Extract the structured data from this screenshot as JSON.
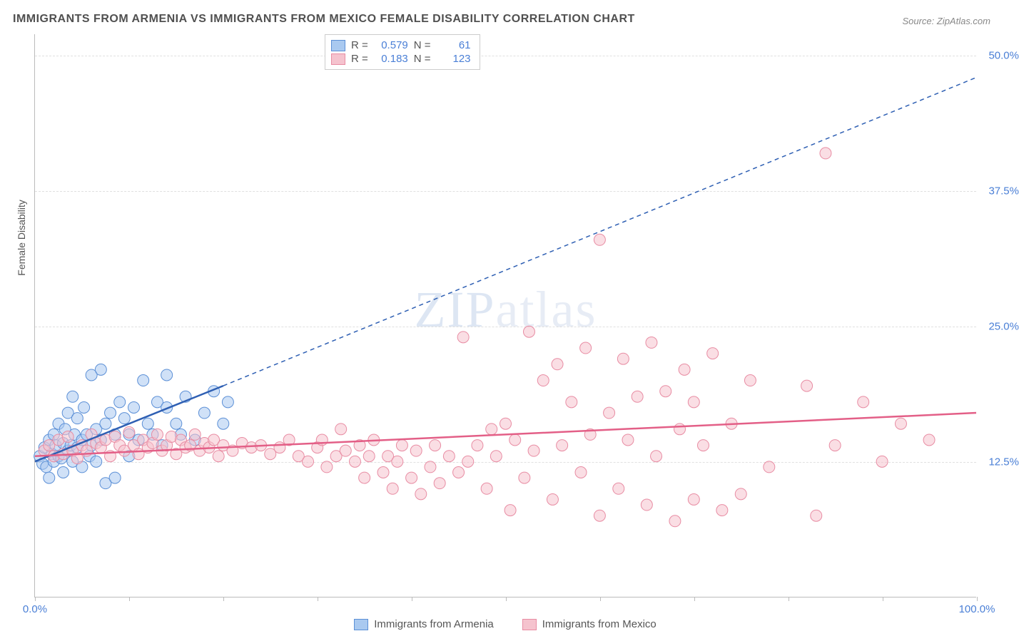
{
  "title": "IMMIGRANTS FROM ARMENIA VS IMMIGRANTS FROM MEXICO FEMALE DISABILITY CORRELATION CHART",
  "source_prefix": "Source: ",
  "source_name": "ZipAtlas.com",
  "ylabel": "Female Disability",
  "watermark_a": "ZIP",
  "watermark_b": "atlas",
  "chart": {
    "type": "scatter-with-regression",
    "xlim": [
      0,
      100
    ],
    "ylim": [
      0,
      52
    ],
    "x_ticks": [
      0,
      10,
      20,
      30,
      40,
      50,
      60,
      70,
      80,
      90,
      100
    ],
    "x_tick_labels": {
      "0": "0.0%",
      "100": "100.0%"
    },
    "y_gridlines": [
      12.5,
      25.0,
      37.5,
      50.0
    ],
    "y_tick_labels": [
      "12.5%",
      "25.0%",
      "37.5%",
      "50.0%"
    ],
    "background_color": "#ffffff",
    "grid_color": "#e0e0e0",
    "axis_label_color": "#4a7fd6",
    "point_radius": 8,
    "point_opacity": 0.55,
    "series": [
      {
        "name": "Immigrants from Armenia",
        "color_fill": "#a9c9f0",
        "color_stroke": "#5b8fd6",
        "line_color": "#2e5fb3",
        "line_width": 2.5,
        "R": "0.579",
        "N": "61",
        "regression": {
          "x1": 0,
          "y1": 12.5,
          "x2_solid": 20,
          "y2_solid": 19.5,
          "x2": 100,
          "y2": 48.0,
          "dashed_from": 20
        },
        "points": [
          [
            0.5,
            13.0
          ],
          [
            0.8,
            12.3
          ],
          [
            1.0,
            13.8
          ],
          [
            1.2,
            12.0
          ],
          [
            1.5,
            14.5
          ],
          [
            1.5,
            11.0
          ],
          [
            1.8,
            13.2
          ],
          [
            2.0,
            15.0
          ],
          [
            2.0,
            12.5
          ],
          [
            2.2,
            14.0
          ],
          [
            2.5,
            13.0
          ],
          [
            2.5,
            16.0
          ],
          [
            2.8,
            12.8
          ],
          [
            3.0,
            14.2
          ],
          [
            3.0,
            11.5
          ],
          [
            3.2,
            15.5
          ],
          [
            3.5,
            13.5
          ],
          [
            3.5,
            17.0
          ],
          [
            3.8,
            14.0
          ],
          [
            4.0,
            12.5
          ],
          [
            4.0,
            18.5
          ],
          [
            4.2,
            15.0
          ],
          [
            4.5,
            13.8
          ],
          [
            4.5,
            16.5
          ],
          [
            5.0,
            14.5
          ],
          [
            5.0,
            12.0
          ],
          [
            5.2,
            17.5
          ],
          [
            5.5,
            15.0
          ],
          [
            5.8,
            13.0
          ],
          [
            6.0,
            20.5
          ],
          [
            6.0,
            14.0
          ],
          [
            6.5,
            15.5
          ],
          [
            6.5,
            12.5
          ],
          [
            7.0,
            21.0
          ],
          [
            7.0,
            14.5
          ],
          [
            7.5,
            16.0
          ],
          [
            7.5,
            10.5
          ],
          [
            8.0,
            17.0
          ],
          [
            8.5,
            15.0
          ],
          [
            8.5,
            11.0
          ],
          [
            9.0,
            18.0
          ],
          [
            9.5,
            16.5
          ],
          [
            10.0,
            15.0
          ],
          [
            10.0,
            13.0
          ],
          [
            10.5,
            17.5
          ],
          [
            11.0,
            14.5
          ],
          [
            11.5,
            20.0
          ],
          [
            12.0,
            16.0
          ],
          [
            12.5,
            15.0
          ],
          [
            13.0,
            18.0
          ],
          [
            13.5,
            14.0
          ],
          [
            14.0,
            17.5
          ],
          [
            14.0,
            20.5
          ],
          [
            15.0,
            16.0
          ],
          [
            15.5,
            15.0
          ],
          [
            16.0,
            18.5
          ],
          [
            17.0,
            14.5
          ],
          [
            18.0,
            17.0
          ],
          [
            19.0,
            19.0
          ],
          [
            20.0,
            16.0
          ],
          [
            20.5,
            18.0
          ]
        ]
      },
      {
        "name": "Immigrants from Mexico",
        "color_fill": "#f5c3ce",
        "color_stroke": "#e88ca3",
        "line_color": "#e35f87",
        "line_width": 2.5,
        "R": "0.183",
        "N": "123",
        "regression": {
          "x1": 0,
          "y1": 13.0,
          "x2_solid": 100,
          "y2_solid": 17.0,
          "x2": 100,
          "y2": 17.0,
          "dashed_from": 100
        },
        "points": [
          [
            1.0,
            13.5
          ],
          [
            1.5,
            14.0
          ],
          [
            2.0,
            13.0
          ],
          [
            2.5,
            14.5
          ],
          [
            3.0,
            13.2
          ],
          [
            3.5,
            14.8
          ],
          [
            4.0,
            13.5
          ],
          [
            4.5,
            12.8
          ],
          [
            5.0,
            14.0
          ],
          [
            5.5,
            13.5
          ],
          [
            6.0,
            15.0
          ],
          [
            6.5,
            14.2
          ],
          [
            7.0,
            13.8
          ],
          [
            7.5,
            14.5
          ],
          [
            8.0,
            13.0
          ],
          [
            8.5,
            14.8
          ],
          [
            9.0,
            14.0
          ],
          [
            9.5,
            13.5
          ],
          [
            10.0,
            15.2
          ],
          [
            10.5,
            14.0
          ],
          [
            11.0,
            13.2
          ],
          [
            11.5,
            14.5
          ],
          [
            12.0,
            13.8
          ],
          [
            12.5,
            14.2
          ],
          [
            13.0,
            15.0
          ],
          [
            13.5,
            13.5
          ],
          [
            14.0,
            14.0
          ],
          [
            14.5,
            14.8
          ],
          [
            15.0,
            13.2
          ],
          [
            15.5,
            14.5
          ],
          [
            16.0,
            13.8
          ],
          [
            16.5,
            14.0
          ],
          [
            17.0,
            15.0
          ],
          [
            17.5,
            13.5
          ],
          [
            18.0,
            14.2
          ],
          [
            18.5,
            13.8
          ],
          [
            19.0,
            14.5
          ],
          [
            19.5,
            13.0
          ],
          [
            20.0,
            14.0
          ],
          [
            21.0,
            13.5
          ],
          [
            22.0,
            14.2
          ],
          [
            23.0,
            13.8
          ],
          [
            24.0,
            14.0
          ],
          [
            25.0,
            13.2
          ],
          [
            26.0,
            13.8
          ],
          [
            27.0,
            14.5
          ],
          [
            28.0,
            13.0
          ],
          [
            29.0,
            12.5
          ],
          [
            30.0,
            13.8
          ],
          [
            30.5,
            14.5
          ],
          [
            31.0,
            12.0
          ],
          [
            32.0,
            13.0
          ],
          [
            32.5,
            15.5
          ],
          [
            33.0,
            13.5
          ],
          [
            34.0,
            12.5
          ],
          [
            34.5,
            14.0
          ],
          [
            35.0,
            11.0
          ],
          [
            35.5,
            13.0
          ],
          [
            36.0,
            14.5
          ],
          [
            37.0,
            11.5
          ],
          [
            37.5,
            13.0
          ],
          [
            38.0,
            10.0
          ],
          [
            38.5,
            12.5
          ],
          [
            39.0,
            14.0
          ],
          [
            40.0,
            11.0
          ],
          [
            40.5,
            13.5
          ],
          [
            41.0,
            9.5
          ],
          [
            42.0,
            12.0
          ],
          [
            42.5,
            14.0
          ],
          [
            43.0,
            10.5
          ],
          [
            44.0,
            13.0
          ],
          [
            45.0,
            11.5
          ],
          [
            45.5,
            24.0
          ],
          [
            46.0,
            12.5
          ],
          [
            47.0,
            14.0
          ],
          [
            48.0,
            10.0
          ],
          [
            48.5,
            15.5
          ],
          [
            49.0,
            13.0
          ],
          [
            50.0,
            16.0
          ],
          [
            50.5,
            8.0
          ],
          [
            51.0,
            14.5
          ],
          [
            52.0,
            11.0
          ],
          [
            52.5,
            24.5
          ],
          [
            53.0,
            13.5
          ],
          [
            54.0,
            20.0
          ],
          [
            55.0,
            9.0
          ],
          [
            55.5,
            21.5
          ],
          [
            56.0,
            14.0
          ],
          [
            57.0,
            18.0
          ],
          [
            58.0,
            11.5
          ],
          [
            58.5,
            23.0
          ],
          [
            59.0,
            15.0
          ],
          [
            60.0,
            7.5
          ],
          [
            60.0,
            33.0
          ],
          [
            61.0,
            17.0
          ],
          [
            62.0,
            10.0
          ],
          [
            62.5,
            22.0
          ],
          [
            63.0,
            14.5
          ],
          [
            64.0,
            18.5
          ],
          [
            65.0,
            8.5
          ],
          [
            65.5,
            23.5
          ],
          [
            66.0,
            13.0
          ],
          [
            67.0,
            19.0
          ],
          [
            68.0,
            7.0
          ],
          [
            68.5,
            15.5
          ],
          [
            69.0,
            21.0
          ],
          [
            70.0,
            9.0
          ],
          [
            70.0,
            18.0
          ],
          [
            71.0,
            14.0
          ],
          [
            72.0,
            22.5
          ],
          [
            73.0,
            8.0
          ],
          [
            74.0,
            16.0
          ],
          [
            75.0,
            9.5
          ],
          [
            76.0,
            20.0
          ],
          [
            78.0,
            12.0
          ],
          [
            82.0,
            19.5
          ],
          [
            83.0,
            7.5
          ],
          [
            84.0,
            41.0
          ],
          [
            85.0,
            14.0
          ],
          [
            88.0,
            18.0
          ],
          [
            90.0,
            12.5
          ],
          [
            92.0,
            16.0
          ],
          [
            95.0,
            14.5
          ]
        ]
      }
    ]
  },
  "legend": {
    "r_label": "R =",
    "n_label": "N ="
  }
}
